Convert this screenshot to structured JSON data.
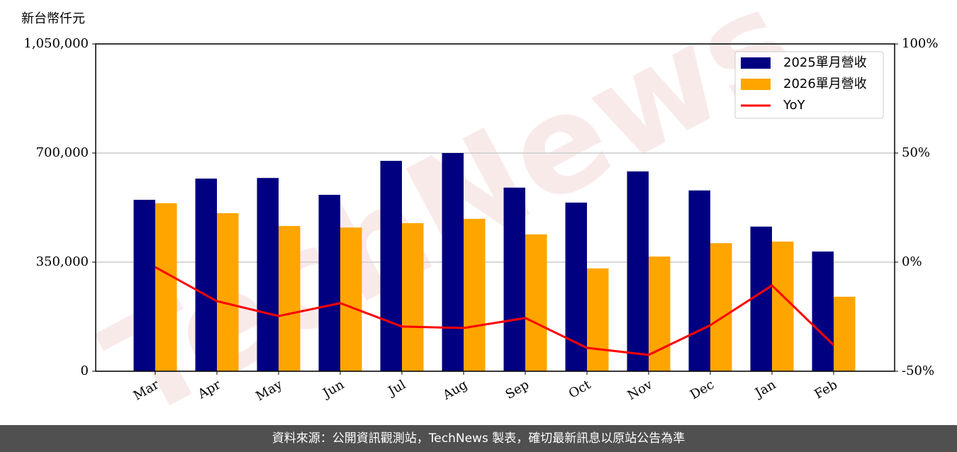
{
  "chart_data": {
    "type": "bar_line",
    "y_label": "新台幣仟元",
    "watermark": "TechNews",
    "footer": "資料來源：公開資訊觀測站，TechNews 製表，確切最新訊息以原站公告為準",
    "categories": [
      "Mar",
      "Apr",
      "May",
      "Jun",
      "Jul",
      "Aug",
      "Sep",
      "Oct",
      "Nov",
      "Dec",
      "Jan",
      "Feb"
    ],
    "series": [
      {
        "name": "2025單月營收",
        "color": "#000080",
        "kind": "bar",
        "values": [
          550000,
          618000,
          620000,
          566000,
          675000,
          700000,
          589000,
          541000,
          641000,
          580000,
          464000,
          384000
        ]
      },
      {
        "name": "2026單月營收",
        "color": "#ffa500",
        "kind": "bar",
        "values": [
          539000,
          507000,
          466000,
          461000,
          475000,
          489000,
          439000,
          330000,
          368000,
          411000,
          416000,
          239000
        ]
      },
      {
        "name": "YoY",
        "color": "#ff0000",
        "kind": "line",
        "axis": "y2",
        "values": [
          -2.3,
          -17.9,
          -24.7,
          -18.8,
          -29.5,
          -30.2,
          -25.6,
          -39.3,
          -42.5,
          -28.9,
          -10.7,
          -38.0
        ]
      }
    ],
    "ylim": [
      0,
      1050000
    ],
    "yticks": [
      0,
      {
        "value": 350000,
        "label": "350,000"
      },
      {
        "value": 700000,
        "label": "700,000"
      },
      {
        "value": 1050000,
        "label": "1,050,000"
      }
    ],
    "y2lim": [
      -50,
      100
    ],
    "y2ticks": [
      {
        "value": -50,
        "label": "-50%"
      },
      {
        "value": 0,
        "label": "0%"
      },
      {
        "value": 50,
        "label": "50%"
      },
      {
        "value": 100,
        "label": "100%"
      }
    ],
    "grid": true,
    "legend": "upper right"
  }
}
